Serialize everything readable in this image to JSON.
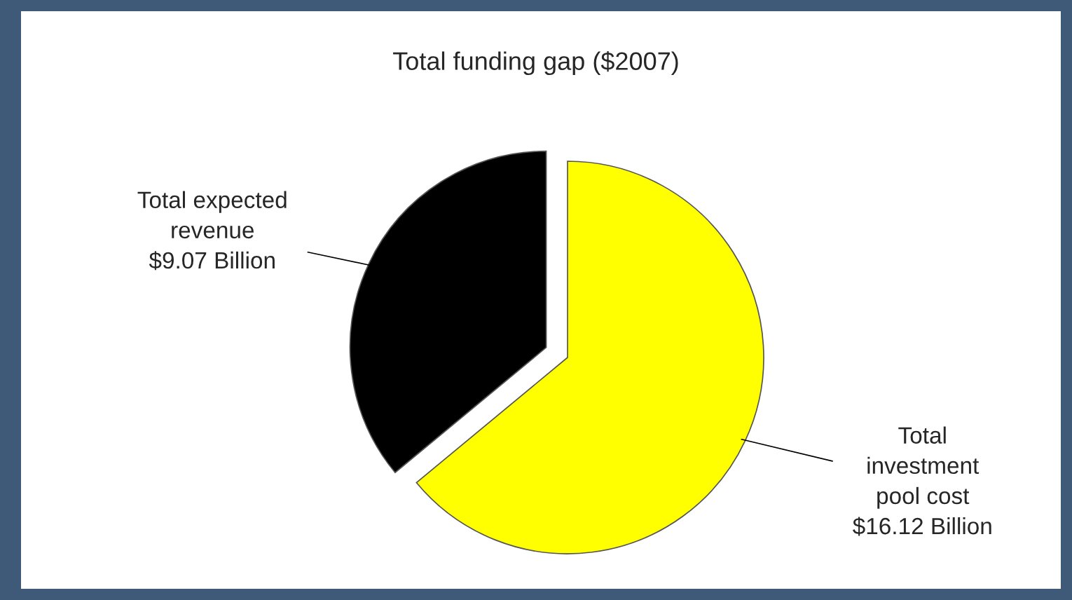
{
  "chart_data": {
    "type": "pie",
    "title": "Total funding gap ($2007)",
    "categories": [
      "Total\ninvestment\npool cost",
      "Total expected\nrevenue"
    ],
    "values": [
      16.12,
      9.07
    ],
    "value_labels": [
      "$16.12 Billion",
      "$9.07 Billion"
    ],
    "colors": [
      "#ffff00",
      "#000000"
    ],
    "legend": false
  }
}
